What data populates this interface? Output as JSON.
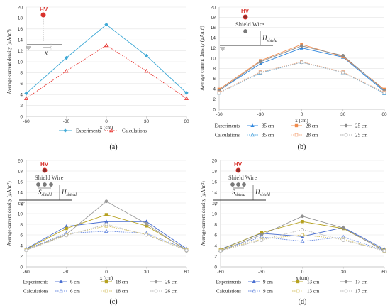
{
  "chart_data": [
    {
      "type": "line",
      "caption": "(a)",
      "x": [
        -60,
        -30,
        0,
        30,
        60
      ],
      "xlabel": "x (cm)",
      "ylabel": "Average current density (μA/m²)",
      "xlim": [
        -60,
        60
      ],
      "ylim": [
        0,
        20
      ],
      "yticks": [
        0,
        2,
        4,
        6,
        8,
        10,
        12,
        14,
        16,
        18,
        20
      ],
      "xticks": [
        -60,
        -30,
        0,
        30,
        60
      ],
      "grid": "horizontal",
      "legend_position": "bottom",
      "diagram": {
        "hv": "HV",
        "x_symbol": "x"
      },
      "series": [
        {
          "name": "Experiments",
          "group": "",
          "label": "Experiments",
          "color": "#3fa9d6",
          "marker": "diamond",
          "dash": "solid",
          "values": [
            4.2,
            10.7,
            16.8,
            11.1,
            4.3
          ]
        },
        {
          "name": "Calculations",
          "group": "",
          "label": "Calculations",
          "color": "#e8332f",
          "marker": "triangle-open",
          "dash": "dotted",
          "values": [
            3.3,
            8.3,
            13.0,
            8.3,
            3.3
          ]
        }
      ]
    },
    {
      "type": "line",
      "caption": "(b)",
      "x": [
        -60,
        -30,
        0,
        30,
        60
      ],
      "xlabel": "x (cm)",
      "ylabel": "Average current density (μA/m²)",
      "xlim": [
        -60,
        60
      ],
      "ylim": [
        0,
        20
      ],
      "yticks": [
        0,
        2,
        4,
        6,
        8,
        10,
        12,
        14,
        16,
        18,
        20
      ],
      "xticks": [
        -60,
        -30,
        0,
        30,
        60
      ],
      "grid": "horizontal",
      "legend_position": "bottom",
      "legend_row_labels": [
        "Experiments",
        "Calculations"
      ],
      "diagram": {
        "hv": "HV",
        "shield_wire": "Shield Wire",
        "h_main": "H",
        "h_sub": "shield"
      },
      "series": [
        {
          "name": "Experiments 35 cm",
          "group": "Experiments",
          "label": "35 cm",
          "color": "#2e86de",
          "marker": "triangle",
          "dash": "solid",
          "values": [
            3.7,
            8.9,
            12.0,
            10.2,
            3.5
          ]
        },
        {
          "name": "Experiments 28 cm",
          "group": "Experiments",
          "label": "28 cm",
          "color": "#f08a4b",
          "marker": "square",
          "dash": "solid",
          "values": [
            3.9,
            9.5,
            12.7,
            10.3,
            3.9
          ]
        },
        {
          "name": "Experiments 25 cm",
          "group": "Experiments",
          "label": "25 cm",
          "color": "#8a8a8a",
          "marker": "circle",
          "dash": "solid",
          "values": [
            3.7,
            9.3,
            12.4,
            10.5,
            3.7
          ]
        },
        {
          "name": "Calculations 35 cm",
          "group": "Calculations",
          "label": "35 cm",
          "color": "#5dade2",
          "marker": "triangle-open",
          "dash": "dotted",
          "values": [
            3.2,
            7.1,
            9.2,
            7.2,
            3.1
          ]
        },
        {
          "name": "Calculations 28 cm",
          "group": "Calculations",
          "label": "28 cm",
          "color": "#f5b08a",
          "marker": "square-open",
          "dash": "dotted",
          "values": [
            3.3,
            7.3,
            9.3,
            7.3,
            3.3
          ]
        },
        {
          "name": "Calculations 25 cm",
          "group": "Calculations",
          "label": "25 cm",
          "color": "#b0b0b0",
          "marker": "circle-open",
          "dash": "dotted",
          "values": [
            3.2,
            7.2,
            9.2,
            7.2,
            3.2
          ]
        }
      ]
    },
    {
      "type": "line",
      "caption": "(c)",
      "x": [
        -60,
        -30,
        0,
        30,
        60
      ],
      "xlabel": "x (cm)",
      "ylabel": "Average current density (μA/m²)",
      "xlim": [
        -60,
        60
      ],
      "ylim": [
        0,
        20
      ],
      "yticks": [
        0,
        2,
        4,
        6,
        8,
        10,
        12,
        14,
        16,
        18,
        20
      ],
      "xticks": [
        -60,
        -30,
        0,
        30,
        60
      ],
      "grid": "horizontal",
      "legend_position": "bottom",
      "legend_row_labels": [
        "Experiments",
        "Calculations"
      ],
      "diagram": {
        "hv": "HV",
        "shield_wire": "Shield Wire",
        "h_main": "H",
        "h_sub": "shield",
        "s_main": "S",
        "s_sub": "shield"
      },
      "series": [
        {
          "name": "Experiments 6 cm",
          "group": "Experiments",
          "label": "6 cm",
          "color": "#4a6fd1",
          "marker": "triangle",
          "dash": "solid",
          "values": [
            3.4,
            7.6,
            8.5,
            8.5,
            3.4
          ]
        },
        {
          "name": "Experiments 18 cm",
          "group": "Experiments",
          "label": "18 cm",
          "color": "#b5a01e",
          "marker": "square",
          "dash": "solid",
          "values": [
            3.3,
            7.2,
            9.8,
            7.7,
            3.2
          ]
        },
        {
          "name": "Experiments 26 cm",
          "group": "Experiments",
          "label": "26 cm",
          "color": "#9a9a9a",
          "marker": "circle",
          "dash": "solid",
          "values": [
            3.2,
            6.1,
            12.3,
            8.1,
            3.0
          ]
        },
        {
          "name": "Calculations 6 cm",
          "group": "Calculations",
          "label": "6 cm",
          "color": "#6d8ee0",
          "marker": "triangle-open",
          "dash": "dotted",
          "values": [
            3.3,
            6.3,
            6.7,
            6.3,
            3.3
          ]
        },
        {
          "name": "Calculations 18 cm",
          "group": "Calculations",
          "label": "18 cm",
          "color": "#d6c26a",
          "marker": "square-open",
          "dash": "dotted",
          "values": [
            3.2,
            6.0,
            7.7,
            6.1,
            3.2
          ]
        },
        {
          "name": "Calculations 26 cm",
          "group": "Calculations",
          "label": "26 cm",
          "color": "#b8b8b8",
          "marker": "circle-open",
          "dash": "dotted",
          "values": [
            3.1,
            5.9,
            8.0,
            6.0,
            3.1
          ]
        }
      ]
    },
    {
      "type": "line",
      "caption": "(d)",
      "x": [
        -60,
        -30,
        0,
        30,
        60
      ],
      "xlabel": "x (cm)",
      "ylabel": "Average current density (μA/m²)",
      "xlim": [
        -60,
        60
      ],
      "ylim": [
        0,
        20
      ],
      "yticks": [
        0,
        2,
        4,
        6,
        8,
        10,
        12,
        14,
        16,
        18,
        20
      ],
      "xticks": [
        -60,
        -30,
        0,
        30,
        60
      ],
      "grid": "horizontal",
      "legend_position": "bottom",
      "legend_row_labels": [
        "Experiments",
        "Calculations"
      ],
      "diagram": {
        "hv": "HV",
        "shield_wire": "Shield Wire",
        "h_main": "H",
        "h_sub": "shield",
        "s_main": "S",
        "s_sub": "shield"
      },
      "series": [
        {
          "name": "Experiments 9 cm",
          "group": "Experiments",
          "label": "9 cm",
          "color": "#4a6fd1",
          "marker": "triangle",
          "dash": "solid",
          "values": [
            3.3,
            6.3,
            5.7,
            7.4,
            3.3
          ]
        },
        {
          "name": "Experiments 13 cm",
          "group": "Experiments",
          "label": "13 cm",
          "color": "#b5a01e",
          "marker": "square",
          "dash": "solid",
          "values": [
            3.2,
            6.4,
            8.5,
            7.2,
            3.1
          ]
        },
        {
          "name": "Experiments 17 cm",
          "group": "Experiments",
          "label": "17 cm",
          "color": "#8f8f8f",
          "marker": "circle",
          "dash": "solid",
          "values": [
            3.0,
            6.0,
            9.5,
            7.3,
            3.0
          ]
        },
        {
          "name": "Calculations 9 cm",
          "group": "Calculations",
          "label": "9 cm",
          "color": "#6d8ee0",
          "marker": "triangle-open",
          "dash": "dotted",
          "values": [
            3.1,
            5.6,
            4.8,
            5.6,
            3.1
          ]
        },
        {
          "name": "Calculations 13 cm",
          "group": "Calculations",
          "label": "13 cm",
          "color": "#d6c26a",
          "marker": "square-open",
          "dash": "dotted",
          "values": [
            3.1,
            5.2,
            6.0,
            5.2,
            3.0
          ]
        },
        {
          "name": "Calculations 17 cm",
          "group": "Calculations",
          "label": "17 cm",
          "color": "#b8b8b8",
          "marker": "circle-open",
          "dash": "dotted",
          "values": [
            3.0,
            5.0,
            7.0,
            5.0,
            3.0
          ]
        }
      ]
    }
  ]
}
